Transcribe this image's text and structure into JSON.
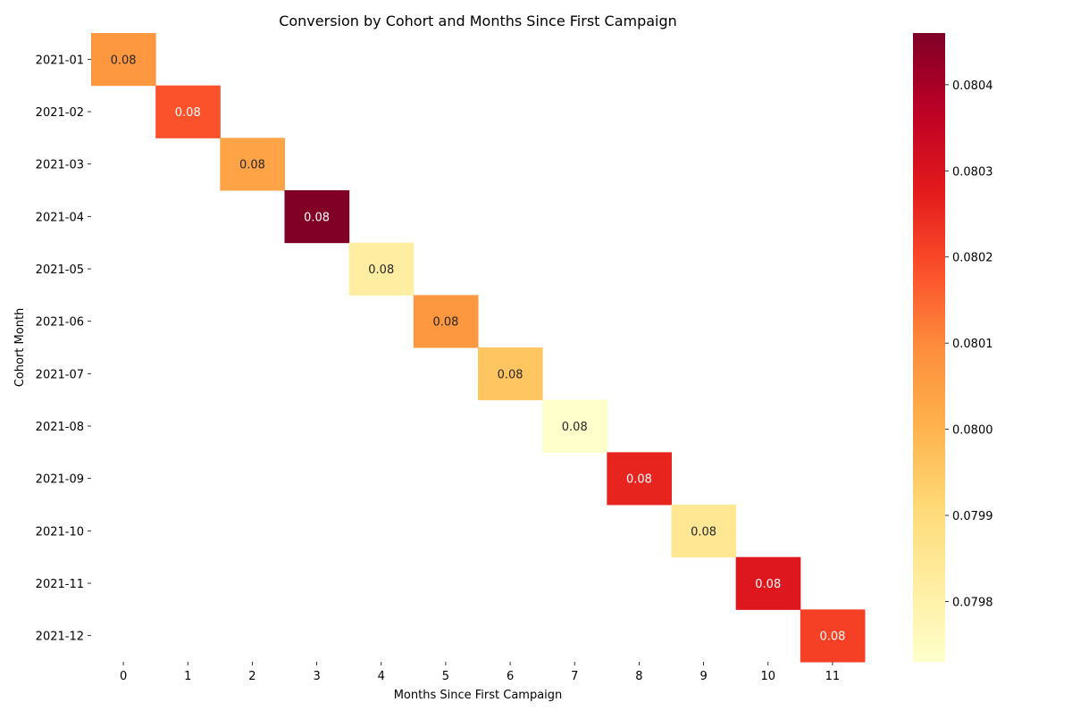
{
  "chart_data": {
    "type": "heatmap",
    "title": "Conversion by Cohort and Months Since First Campaign",
    "xlabel": "Months Since First Campaign",
    "ylabel": "Cohort Month",
    "x_categories": [
      "0",
      "1",
      "2",
      "3",
      "4",
      "5",
      "6",
      "7",
      "8",
      "9",
      "10",
      "11"
    ],
    "y_categories": [
      "2021-01",
      "2021-02",
      "2021-03",
      "2021-04",
      "2021-05",
      "2021-06",
      "2021-07",
      "2021-08",
      "2021-09",
      "2021-10",
      "2021-11",
      "2021-12"
    ],
    "cells": [
      {
        "row": "2021-01",
        "col": "0",
        "value": 0.08007,
        "label": "0.08"
      },
      {
        "row": "2021-02",
        "col": "1",
        "value": 0.08018,
        "label": "0.08"
      },
      {
        "row": "2021-03",
        "col": "2",
        "value": 0.08004,
        "label": "0.08"
      },
      {
        "row": "2021-04",
        "col": "3",
        "value": 0.08046,
        "label": "0.08"
      },
      {
        "row": "2021-05",
        "col": "4",
        "value": 0.07982,
        "label": "0.08"
      },
      {
        "row": "2021-06",
        "col": "5",
        "value": 0.08007,
        "label": "0.08"
      },
      {
        "row": "2021-07",
        "col": "6",
        "value": 0.07996,
        "label": "0.08"
      },
      {
        "row": "2021-08",
        "col": "7",
        "value": 0.07973,
        "label": "0.08"
      },
      {
        "row": "2021-09",
        "col": "8",
        "value": 0.08026,
        "label": "0.08"
      },
      {
        "row": "2021-10",
        "col": "9",
        "value": 0.07985,
        "label": "0.08"
      },
      {
        "row": "2021-11",
        "col": "10",
        "value": 0.08029,
        "label": "0.08"
      },
      {
        "row": "2021-12",
        "col": "11",
        "value": 0.08021,
        "label": "0.08"
      }
    ],
    "colormap": "YlOrRd",
    "colorbar": {
      "range": [
        0.07973,
        0.08046
      ],
      "ticks": [
        0.0798,
        0.0799,
        0.08,
        0.0801,
        0.0802,
        0.0803,
        0.0804
      ],
      "tick_labels": [
        "0.0798",
        "0.0799",
        "0.0800",
        "0.0801",
        "0.0802",
        "0.0803",
        "0.0804"
      ]
    },
    "grid": false
  }
}
